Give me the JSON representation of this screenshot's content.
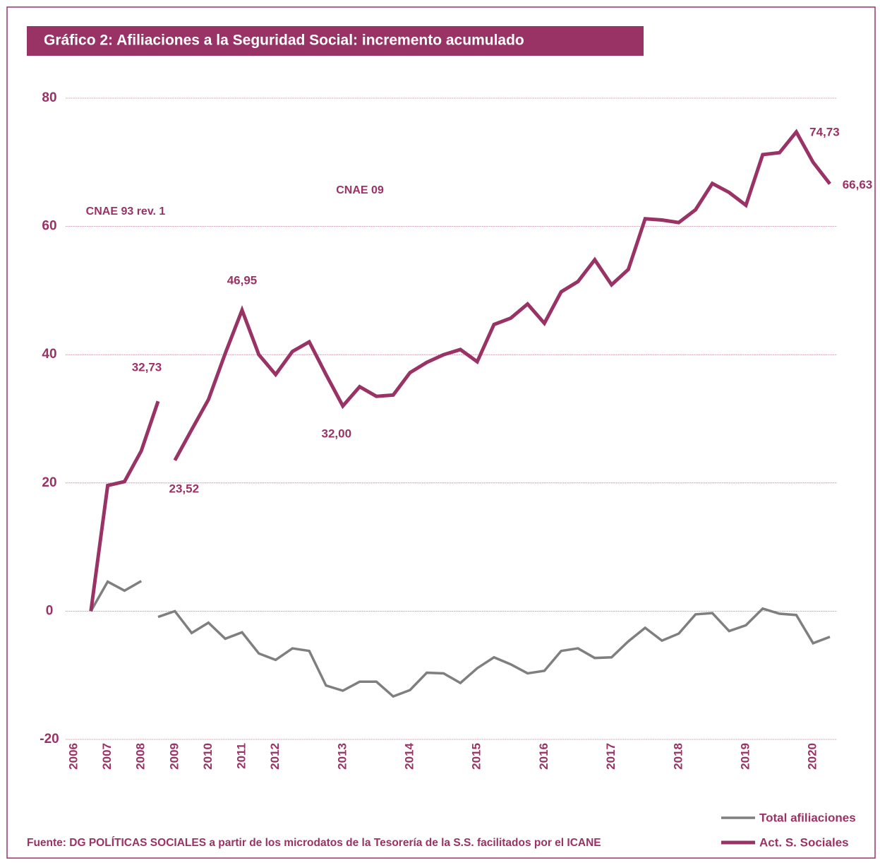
{
  "chart_data": {
    "type": "line",
    "title": "Gráfico 2: Afiliaciones a la Seguridad Social: incremento acumulado",
    "source": "Fuente: DG POLÍTICAS SOCIALES a partir de los microdatos de la Tesorería de la S.S. facilitados por el ICANE",
    "annotations": [
      "CNAE 93 rev. 1",
      "CNAE 09"
    ],
    "categories": [
      "2006",
      null,
      "2007",
      null,
      "2008",
      null,
      "2009",
      null,
      "2010",
      null,
      "2011",
      null,
      "2012",
      null,
      null,
      null,
      "2013",
      null,
      null,
      null,
      "2014",
      null,
      null,
      null,
      "2015",
      null,
      null,
      null,
      "2016",
      null,
      null,
      null,
      "2017",
      null,
      null,
      null,
      "2018",
      null,
      null,
      null,
      "2019",
      null,
      null,
      null,
      "2020",
      null
    ],
    "ylim": [
      -20,
      80
    ],
    "yticks": [
      -20,
      0,
      20,
      40,
      60,
      80
    ],
    "grid": true,
    "series": [
      {
        "name": "Total afiliaciones",
        "color": "#7f7f7f",
        "line_width": 3.5,
        "values": [
          null,
          0,
          4.6,
          3.2,
          4.7,
          null,
          null,
          null,
          null,
          null,
          null,
          null,
          null,
          null,
          null,
          null,
          null,
          null,
          null,
          null,
          null,
          null,
          null,
          null,
          null,
          null,
          null,
          null,
          null,
          null,
          null,
          null,
          null,
          null,
          null,
          null,
          null,
          null,
          null,
          null,
          null,
          null,
          null,
          null,
          null,
          null
        ]
      },
      {
        "name": "Total afiliaciones",
        "color": "#7f7f7f",
        "line_width": 3.5,
        "values": [
          null,
          null,
          null,
          null,
          null,
          -0.9,
          0,
          -3.4,
          -1.8,
          -4.3,
          -3.3,
          -6.6,
          -7.6,
          -5.8,
          -6.2,
          -11.6,
          -12.4,
          -11,
          -11,
          -13.3,
          -12.3,
          -9.6,
          -9.7,
          -11.2,
          -8.9,
          -7.2,
          -8.3,
          -9.7,
          -9.3,
          -6.2,
          -5.8,
          -7.3,
          -7.2,
          -4.7,
          -2.6,
          -4.6,
          -3.5,
          -0.5,
          -0.3,
          -3.1,
          -2.2,
          0.4,
          -0.4,
          -0.6,
          -5,
          -4
        ]
      },
      {
        "name": "Act. S. Sociales",
        "color": "#993366",
        "line_width": 5,
        "values": [
          null,
          0,
          19.6,
          20.2,
          25,
          32.73,
          null,
          null,
          null,
          null,
          null,
          null,
          null,
          null,
          null,
          null,
          null,
          null,
          null,
          null,
          null,
          null,
          null,
          null,
          null,
          null,
          null,
          null,
          null,
          null,
          null,
          null,
          null,
          null,
          null,
          null,
          null,
          null,
          null,
          null,
          null,
          null,
          null,
          null,
          null,
          null
        ],
        "value_labels": [
          null,
          null,
          null,
          null,
          null,
          "32,73",
          null,
          null,
          null,
          null,
          null,
          null,
          null,
          null,
          null,
          null,
          null,
          null,
          null,
          null,
          null,
          null,
          null,
          null,
          null,
          null,
          null,
          null,
          null,
          null,
          null,
          null,
          null,
          null,
          null,
          null,
          null,
          null,
          null,
          null,
          null,
          null,
          null,
          null,
          null,
          null
        ]
      },
      {
        "name": "Act. S. Sociales",
        "color": "#993366",
        "line_width": 5,
        "values": [
          null,
          null,
          null,
          null,
          null,
          null,
          23.52,
          28.3,
          33,
          40.2,
          46.95,
          40,
          36.9,
          40.5,
          42,
          36.9,
          32,
          35,
          33.5,
          33.7,
          37.2,
          38.8,
          40,
          40.8,
          38.9,
          44.7,
          45.7,
          47.9,
          44.9,
          49.8,
          51.4,
          54.8,
          50.9,
          53.3,
          61.2,
          61,
          60.6,
          62.6,
          66.7,
          65.3,
          63.3,
          71.2,
          71.5,
          74.73,
          70,
          66.63
        ],
        "value_labels": [
          null,
          null,
          null,
          null,
          null,
          null,
          "23,52",
          null,
          null,
          null,
          "46,95",
          null,
          null,
          null,
          null,
          null,
          "32,00",
          null,
          null,
          null,
          null,
          null,
          null,
          null,
          null,
          null,
          null,
          null,
          null,
          null,
          null,
          null,
          null,
          null,
          null,
          null,
          null,
          null,
          null,
          null,
          null,
          null,
          null,
          "74,73",
          null,
          "66,63"
        ]
      }
    ]
  }
}
